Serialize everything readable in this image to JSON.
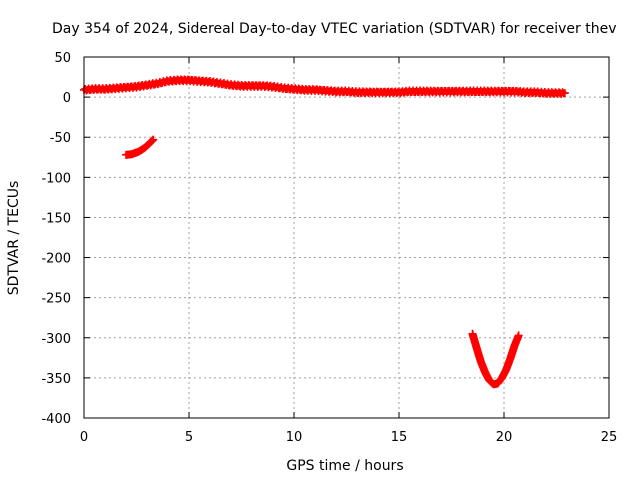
{
  "chart_data": {
    "type": "scatter",
    "title": "Day 354 of 2024, Sidereal Day-to-day VTEC variation (SDTVAR) for receiver thev",
    "xlabel": "GPS time / hours",
    "ylabel": "SDTVAR / TECUs",
    "xlim": [
      0,
      25
    ],
    "ylim": [
      -400,
      50
    ],
    "x_ticks": [
      0,
      5,
      10,
      15,
      20,
      25
    ],
    "x_tick_labels": [
      "0",
      "5",
      "10",
      "15",
      "20",
      "25"
    ],
    "y_ticks": [
      50,
      0,
      -50,
      -100,
      -150,
      -200,
      -250,
      -300,
      -350,
      -400
    ],
    "y_tick_labels": [
      "50",
      "0",
      "-50",
      "-100",
      "-150",
      "-200",
      "-250",
      "-300",
      "-350",
      "-400"
    ],
    "grid": true,
    "marker": "plus",
    "color": "#ff0000",
    "series": [
      {
        "points": [
          [
            0.0,
            9
          ],
          [
            0.5,
            10
          ],
          [
            1.0,
            10
          ],
          [
            1.5,
            11
          ],
          [
            2.0,
            12
          ],
          [
            2.5,
            13
          ],
          [
            3.0,
            15
          ],
          [
            3.5,
            17
          ],
          [
            4.0,
            20
          ],
          [
            4.5,
            21
          ],
          [
            5.0,
            21
          ],
          [
            5.5,
            20
          ],
          [
            6.0,
            19
          ],
          [
            6.5,
            17
          ],
          [
            7.0,
            15
          ],
          [
            7.5,
            14
          ],
          [
            8.0,
            14
          ],
          [
            8.5,
            14
          ],
          [
            9.0,
            13
          ],
          [
            9.5,
            11
          ],
          [
            10.0,
            10
          ],
          [
            10.5,
            9
          ],
          [
            11.0,
            9
          ],
          [
            11.5,
            8
          ],
          [
            12.0,
            7
          ],
          [
            12.5,
            7
          ],
          [
            13.0,
            6
          ],
          [
            13.5,
            6
          ],
          [
            14.0,
            6
          ],
          [
            14.5,
            6
          ],
          [
            15.0,
            6
          ],
          [
            15.5,
            7
          ],
          [
            16.0,
            7
          ],
          [
            16.5,
            7
          ],
          [
            17.0,
            7
          ],
          [
            17.5,
            7
          ],
          [
            18.0,
            7
          ],
          [
            18.5,
            7
          ],
          [
            19.0,
            7
          ],
          [
            19.5,
            7
          ],
          [
            20.0,
            7
          ],
          [
            20.5,
            7
          ],
          [
            21.0,
            6
          ],
          [
            21.5,
            6
          ],
          [
            22.0,
            5
          ],
          [
            22.5,
            5
          ],
          [
            22.9,
            5
          ]
        ]
      },
      {
        "points": [
          [
            2.0,
            -72
          ],
          [
            2.3,
            -71
          ],
          [
            2.6,
            -68
          ],
          [
            2.9,
            -63
          ],
          [
            3.1,
            -58
          ],
          [
            3.3,
            -53
          ]
        ]
      },
      {
        "points": [
          [
            18.5,
            -295
          ],
          [
            18.7,
            -313
          ],
          [
            18.9,
            -330
          ],
          [
            19.1,
            -343
          ],
          [
            19.3,
            -353
          ],
          [
            19.5,
            -358
          ],
          [
            19.7,
            -357
          ],
          [
            19.9,
            -350
          ],
          [
            20.1,
            -340
          ],
          [
            20.3,
            -326
          ],
          [
            20.5,
            -310
          ],
          [
            20.7,
            -297
          ]
        ]
      }
    ]
  }
}
